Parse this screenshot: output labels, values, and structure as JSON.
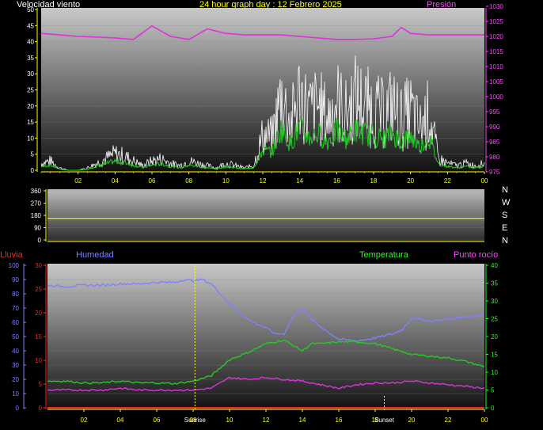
{
  "header": {
    "wind_label": "Velocidad viento",
    "title": "24 hour graph day : 12 Febrero 2025",
    "pressure_label": "Presión"
  },
  "compass": [
    "N",
    "W",
    "S",
    "E",
    "N"
  ],
  "bottom_labels": {
    "rain": "Lluvia",
    "humidity": "Humedad",
    "temperature": "Temperatura",
    "dewpoint": "Punto rocío",
    "sunrise": "Sunrise",
    "sunset": "Sunset"
  },
  "colors": {
    "wind_gust": "#ffffff",
    "wind_avg": "#22cc22",
    "pressure": "#dd33dd",
    "direction": "#dddd33",
    "humidity": "#8080ff",
    "temperature": "#22cc22",
    "dewpoint": "#dd33dd",
    "rain": "#ff2222",
    "axis_yellow": "#ffff00",
    "axis_magenta": "#ff44ff",
    "axis_red": "#ff2222",
    "axis_blue": "#8080ff",
    "axis_green": "#22ff22"
  },
  "chart_data": [
    {
      "id": "wind-pressure",
      "type": "line",
      "x_ticks": [
        "02",
        "04",
        "06",
        "08",
        "10",
        "12",
        "14",
        "16",
        "18",
        "20",
        "22",
        "00"
      ],
      "y_left_ticks": [
        "0",
        "5",
        "10",
        "15",
        "20",
        "25",
        "30",
        "35",
        "40",
        "45",
        "50"
      ],
      "y_left_range": [
        0,
        50
      ],
      "y_right_ticks": [
        "975",
        "980",
        "985",
        "990",
        "995",
        "1000",
        "1005",
        "1010",
        "1015",
        "1020",
        "1025",
        "1030"
      ],
      "y_right_range": [
        975,
        1030
      ],
      "grid": true,
      "series": [
        {
          "name": "Velocidad viento",
          "axis": "left",
          "x": [
            0,
            0.5,
            1,
            1.5,
            2,
            2.5,
            3,
            3.5,
            4,
            4.5,
            5,
            5.5,
            6,
            6.5,
            7,
            7.5,
            8,
            8.5,
            9,
            9.5,
            10,
            10.5,
            11,
            11.5,
            12,
            12.5,
            13,
            13.5,
            14,
            14.5,
            15,
            15.5,
            16,
            16.5,
            17,
            17.5,
            18,
            18.5,
            19,
            19.5,
            20,
            20.5,
            21,
            21.5,
            22,
            22.5,
            23,
            23.5,
            24
          ],
          "values": [
            3,
            4,
            1,
            0,
            0,
            1,
            3,
            5,
            7,
            6,
            4,
            2,
            4,
            5,
            3,
            2,
            4,
            3,
            2,
            1,
            3,
            2,
            1,
            2,
            15,
            14,
            32,
            20,
            33,
            25,
            28,
            22,
            30,
            24,
            31,
            28,
            26,
            24,
            28,
            22,
            26,
            18,
            25,
            5,
            3,
            2,
            3,
            2,
            3
          ]
        },
        {
          "name": "Presión",
          "axis": "right",
          "x": [
            0,
            1,
            2,
            3,
            4,
            5,
            6,
            7,
            8,
            9,
            10,
            11,
            12,
            13,
            14,
            15,
            16,
            17,
            18,
            19,
            19.5,
            20,
            21,
            22,
            23,
            24
          ],
          "values": [
            1021,
            1020.5,
            1020,
            1019.8,
            1019.5,
            1019,
            1023.5,
            1020,
            1019,
            1022.5,
            1021,
            1020.5,
            1020.5,
            1020.5,
            1020,
            1019.5,
            1019,
            1019,
            1019.2,
            1020,
            1023,
            1021,
            1020.5,
            1020.5,
            1020.5,
            1020.5
          ]
        }
      ]
    },
    {
      "id": "wind-direction",
      "type": "line",
      "x_ticks": [],
      "y_left_ticks": [
        "0",
        "90",
        "180",
        "270",
        "360"
      ],
      "y_left_range": [
        0,
        360
      ],
      "series": [
        {
          "x": [
            0,
            24
          ],
          "values": [
            158,
            158
          ]
        }
      ]
    },
    {
      "id": "rain-hum-temp-dew",
      "type": "line",
      "x_ticks": [
        "02",
        "04",
        "06",
        "08",
        "10",
        "12",
        "14",
        "16",
        "18",
        "20",
        "22",
        "00"
      ],
      "y_rain_ticks": [
        "0",
        "5",
        "10",
        "15",
        "20",
        "25",
        "30"
      ],
      "y_rain_range": [
        0,
        30
      ],
      "y_hum_ticks": [
        "0",
        "10",
        "20",
        "30",
        "40",
        "50",
        "60",
        "70",
        "80",
        "90",
        "100"
      ],
      "y_hum_range": [
        0,
        100
      ],
      "y_right_ticks": [
        "0",
        "5",
        "10",
        "15",
        "20",
        "25",
        "30",
        "35",
        "40"
      ],
      "y_right_range": [
        0,
        40
      ],
      "series": [
        {
          "name": "Humedad",
          "axis": "hum",
          "x": [
            0,
            1,
            2,
            3,
            4,
            5,
            6,
            7,
            7.5,
            8,
            8.5,
            9,
            10,
            11,
            12,
            12.5,
            13,
            13.5,
            14,
            14.5,
            15,
            16,
            17,
            18,
            19,
            19.5,
            20,
            21,
            22,
            23,
            24
          ],
          "values": [
            86,
            85,
            86,
            86,
            87,
            87,
            88,
            88,
            90,
            89,
            90,
            87,
            73,
            62,
            56,
            52,
            52,
            64,
            70,
            62,
            57,
            48,
            47,
            49,
            52,
            55,
            63,
            61,
            62,
            64,
            65
          ]
        },
        {
          "name": "Temperatura",
          "axis": "right",
          "x": [
            0,
            1,
            2,
            3,
            4,
            5,
            6,
            7,
            8,
            9,
            10,
            11,
            12,
            12.5,
            13,
            14,
            14.5,
            15,
            16,
            17,
            18,
            19,
            20,
            21,
            22,
            23,
            24
          ],
          "values": [
            7.5,
            7.5,
            7,
            7,
            7.5,
            7,
            7,
            6.8,
            7.5,
            9,
            13.5,
            15.5,
            18,
            18.5,
            19,
            16,
            18,
            18,
            18.5,
            18.5,
            18,
            16.5,
            15,
            14.5,
            14,
            13,
            11.5
          ]
        },
        {
          "name": "Punto rocío",
          "axis": "right",
          "x": [
            0,
            1,
            2,
            3,
            4,
            5,
            6,
            7,
            8,
            9,
            10,
            11,
            12,
            13,
            14,
            15,
            16,
            17,
            18,
            19,
            20,
            21,
            22,
            23,
            24
          ],
          "values": [
            5,
            5,
            5,
            5,
            5.5,
            5,
            5,
            5,
            5,
            5.5,
            8.5,
            8,
            8.5,
            8,
            7.5,
            6.5,
            5.5,
            6.5,
            7,
            7,
            7.5,
            7,
            6.5,
            6,
            5.5
          ]
        },
        {
          "name": "Lluvia",
          "axis": "rain",
          "x": [
            0,
            24
          ],
          "values": [
            0,
            0
          ]
        }
      ],
      "markers": [
        {
          "label": "Sunrise",
          "hour": 8.1
        },
        {
          "label": "Sunset",
          "hour": 18.5
        }
      ]
    }
  ]
}
